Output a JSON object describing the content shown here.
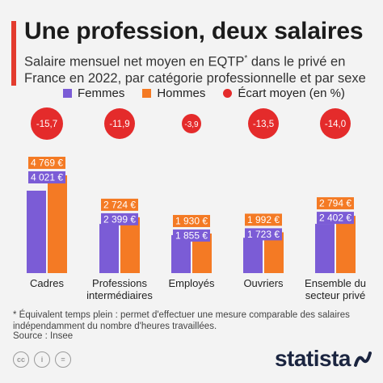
{
  "header": {
    "title": "Une profession, deux salaires",
    "subtitle_part1": "Salaire mensuel net moyen en EQTP",
    "subtitle_sup": "*",
    "subtitle_part2": " dans le privé en France en 2022, par catégorie professionnelle et par sexe"
  },
  "legend": {
    "femmes": "Femmes",
    "hommes": "Hommes",
    "ecart": "Écart moyen (en %)"
  },
  "colors": {
    "femmes": "#7b5cd6",
    "hommes": "#f47a24",
    "ecart": "#e42b2b",
    "accent": "#e33b2e"
  },
  "chart_data": {
    "type": "bar",
    "categories": [
      "Cadres",
      "Professions\nintermédiaires",
      "Employés",
      "Ouvriers",
      "Ensemble du\nsecteur privé"
    ],
    "series": [
      {
        "name": "Femmes",
        "values": [
          4021,
          2399,
          1855,
          1723,
          2402
        ],
        "labels": [
          "4 021 €",
          "2 399 €",
          "1 855 €",
          "1 723 €",
          "2 402 €"
        ]
      },
      {
        "name": "Hommes",
        "values": [
          4769,
          2724,
          1930,
          1992,
          2794
        ],
        "labels": [
          "4 769 €",
          "2 724 €",
          "1 930 €",
          "1 992 €",
          "2 794 €"
        ]
      }
    ],
    "ecart": {
      "name": "Écart moyen (en %)",
      "values": [
        -15.7,
        -11.9,
        -3.9,
        -13.5,
        -14.0
      ],
      "labels": [
        "-15,7",
        "-11,9",
        "-3,9",
        "-13,5",
        "-14,0"
      ]
    },
    "ylim": [
      0,
      4769
    ]
  },
  "footer": {
    "footnote": "* Équivalent temps plein : permet d'effectuer une mesure comparable des salaires indépendamment du nombre d'heures travaillées.",
    "source": "Source : Insee",
    "brand": "statista"
  }
}
